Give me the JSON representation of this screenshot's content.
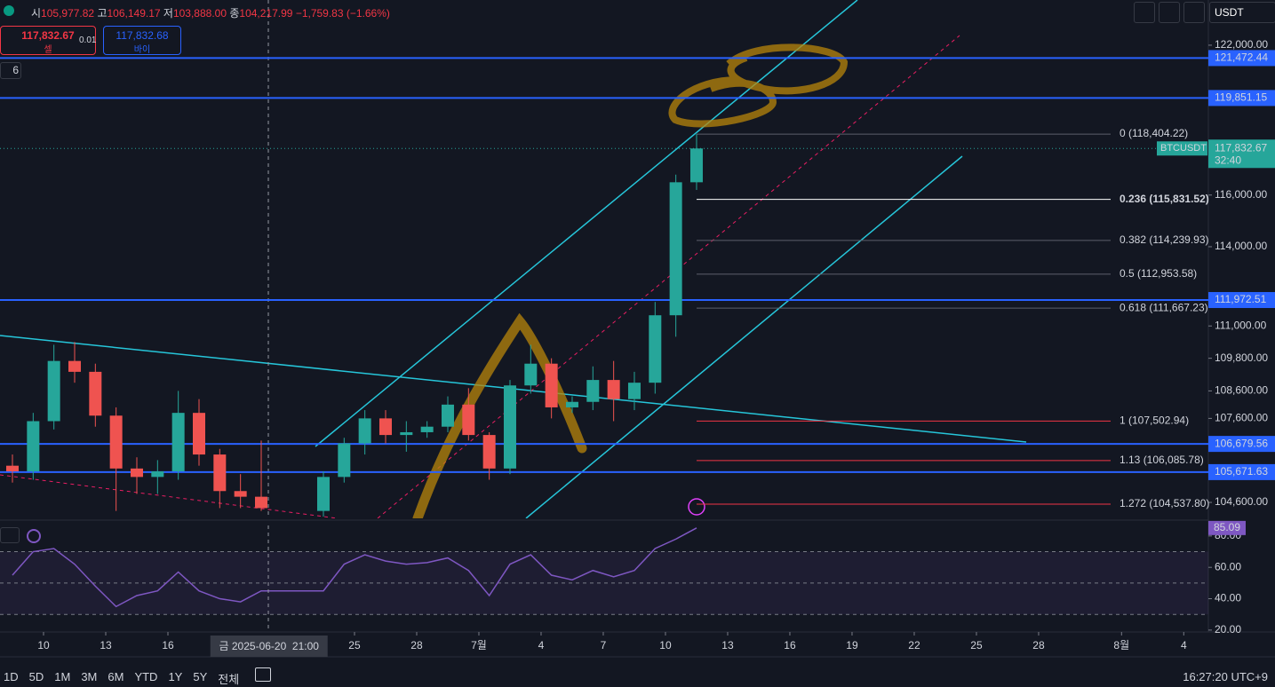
{
  "ui": {
    "ohlc_labels": [
      "시",
      "고",
      "저",
      "종"
    ],
    "ohlc_values": [
      "105,977.82",
      "106,149.17",
      "103,888.00",
      "104,217.99"
    ],
    "change": "−1,759.83 (−1.66%)",
    "sell_price": "117,832.67",
    "sell_label": "셀",
    "spread": "0.01",
    "buy_price": "117,832.68",
    "buy_label": "바이",
    "indicator_count": "6",
    "currency": "USDT",
    "ranges": [
      "1D",
      "5D",
      "1M",
      "3M",
      "6M",
      "YTD",
      "1Y",
      "5Y",
      "전체"
    ],
    "clock": "16:27:20 UTC+9"
  },
  "chart_data": {
    "type": "candlestick",
    "symbol": "BTCUSDT",
    "countdown": "32:40",
    "last_price": {
      "value": 117832.67,
      "label": "117,832.67"
    },
    "log_scale": true,
    "ylim": [
      104040,
      123870
    ],
    "yticks": [
      {
        "value": 122000,
        "label": "122,000.00"
      },
      {
        "value": 116000,
        "label": "116,000.00"
      },
      {
        "value": 114000,
        "label": "114,000.00"
      },
      {
        "value": 111000,
        "label": "111,000.00"
      },
      {
        "value": 109800,
        "label": "109,800.00"
      },
      {
        "value": 108600,
        "label": "108,600.00"
      },
      {
        "value": 107600,
        "label": "107,600.00"
      },
      {
        "value": 104600,
        "label": "104,600.00"
      }
    ],
    "xlim": [
      "2025-06-07T21:36",
      "2025-08-05T04:30"
    ],
    "xticks": [
      {
        "value": "2025-06-10",
        "label": "10"
      },
      {
        "value": "2025-06-13",
        "label": "13"
      },
      {
        "value": "2025-06-16",
        "label": "16"
      },
      {
        "value": "2025-06-25",
        "label": "25"
      },
      {
        "value": "2025-06-28",
        "label": "28"
      },
      {
        "value": "2025-07-01",
        "label": "7월"
      },
      {
        "value": "2025-07-04",
        "label": "4"
      },
      {
        "value": "2025-07-07",
        "label": "7"
      },
      {
        "value": "2025-07-10",
        "label": "10"
      },
      {
        "value": "2025-07-13",
        "label": "13"
      },
      {
        "value": "2025-07-16",
        "label": "16"
      },
      {
        "value": "2025-07-19",
        "label": "19"
      },
      {
        "value": "2025-07-22",
        "label": "22"
      },
      {
        "value": "2025-07-25",
        "label": "25"
      },
      {
        "value": "2025-07-28",
        "label": "28"
      },
      {
        "value": "2025-08-01",
        "label": "8월"
      },
      {
        "value": "2025-08-04",
        "label": "4"
      }
    ],
    "crosshair": {
      "x": "2025-06-20T21:00",
      "label": "금 2025-06-20  21:00"
    },
    "color_up": "#26a69a",
    "color_down": "#ef5350",
    "candles": {
      "x": [
        "2025-06-08",
        "2025-06-09",
        "2025-06-10",
        "2025-06-11",
        "2025-06-12",
        "2025-06-13",
        "2025-06-14",
        "2025-06-15",
        "2025-06-16",
        "2025-06-17",
        "2025-06-18",
        "2025-06-19",
        "2025-06-20",
        "2025-06-23",
        "2025-06-24",
        "2025-06-25",
        "2025-06-26",
        "2025-06-27",
        "2025-06-28",
        "2025-06-29",
        "2025-06-30",
        "2025-07-01",
        "2025-07-02",
        "2025-07-03",
        "2025-07-04",
        "2025-07-05",
        "2025-07-06",
        "2025-07-07",
        "2025-07-08",
        "2025-07-09",
        "2025-07-10",
        "2025-07-11"
      ],
      "open": [
        105900,
        105700,
        107500,
        109700,
        109300,
        107700,
        105800,
        105500,
        105700,
        107800,
        106300,
        105000,
        104800,
        104300,
        105500,
        106700,
        107600,
        107000,
        107100,
        107300,
        108100,
        107000,
        105800,
        108800,
        109600,
        108000,
        108200,
        109000,
        108300,
        108900,
        111400,
        116500
      ],
      "high": [
        106300,
        107800,
        110300,
        110400,
        109600,
        108000,
        106200,
        106100,
        108600,
        108300,
        106500,
        105600,
        106800,
        105700,
        106900,
        107900,
        107900,
        107500,
        107500,
        108400,
        108700,
        107100,
        109000,
        110300,
        109800,
        108400,
        109500,
        109700,
        109300,
        111900,
        116800,
        118404.22
      ],
      "low": [
        105300,
        105400,
        107200,
        108900,
        107300,
        104300,
        104900,
        104900,
        105400,
        105900,
        104400,
        104400,
        104300,
        104100,
        105300,
        106300,
        106700,
        106400,
        106900,
        107100,
        106800,
        105400,
        105600,
        108500,
        107600,
        107800,
        107900,
        107500,
        107900,
        108500,
        110600,
        116200
      ],
      "close": [
        105700,
        107500,
        109700,
        109300,
        107700,
        105800,
        105500,
        105700,
        107800,
        106300,
        105000,
        104800,
        104400,
        105500,
        106700,
        107600,
        107000,
        107100,
        107300,
        108100,
        107000,
        105800,
        108800,
        109600,
        108000,
        108200,
        109000,
        108300,
        108900,
        111400,
        116500,
        117832.67
      ]
    },
    "levels": [
      {
        "value": 121472.44,
        "label": "121,472.44"
      },
      {
        "value": 119851.15,
        "label": "119,851.15"
      },
      {
        "value": 111972.51,
        "label": "111,972.51"
      },
      {
        "value": 106679.56,
        "label": "106,679.56"
      },
      {
        "value": 105671.63,
        "label": "105,671.63"
      }
    ],
    "level_color": "#2962ff",
    "fib": [
      {
        "value": 118404.22,
        "label": "0 (118,404.22)",
        "color": "#5d606b"
      },
      {
        "value": 115831.52,
        "label": "0.236 (115,831.52)",
        "color": "#ffffff"
      },
      {
        "value": 114239.93,
        "label": "0.382 (114,239.93)",
        "color": "#5d606b"
      },
      {
        "value": 112953.58,
        "label": "0.5 (112,953.58)",
        "color": "#5d606b"
      },
      {
        "value": 111667.23,
        "label": "0.618 (111,667.23)",
        "color": "#5d606b"
      },
      {
        "value": 107502.94,
        "label": "1 (107,502.94)",
        "color": "#f23645"
      },
      {
        "value": 106085.78,
        "label": "1.13 (106,085.78)",
        "color": "#f23645"
      },
      {
        "value": 104537.8,
        "label": "1.272 (104,537.80)",
        "color": "#f23645"
      }
    ],
    "rsi": {
      "values": [
        55,
        70,
        72,
        62,
        48,
        35,
        42,
        45,
        57,
        45,
        40,
        38,
        45,
        45,
        62,
        68,
        64,
        62,
        63,
        66,
        58,
        42,
        62,
        68,
        55,
        52,
        58,
        54,
        58,
        72,
        78,
        85.09
      ],
      "ylim": [
        18.8,
        86.7
      ],
      "yticks": [
        {
          "value": 80,
          "label": "80.00"
        },
        {
          "value": 60,
          "label": "60.00"
        },
        {
          "value": 40,
          "label": "40.00"
        },
        {
          "value": 20,
          "label": "20.00"
        }
      ],
      "levels": [
        70,
        50,
        30
      ],
      "color": "#7e57c2",
      "last": {
        "value": 85.09,
        "label": "85.09"
      }
    }
  }
}
